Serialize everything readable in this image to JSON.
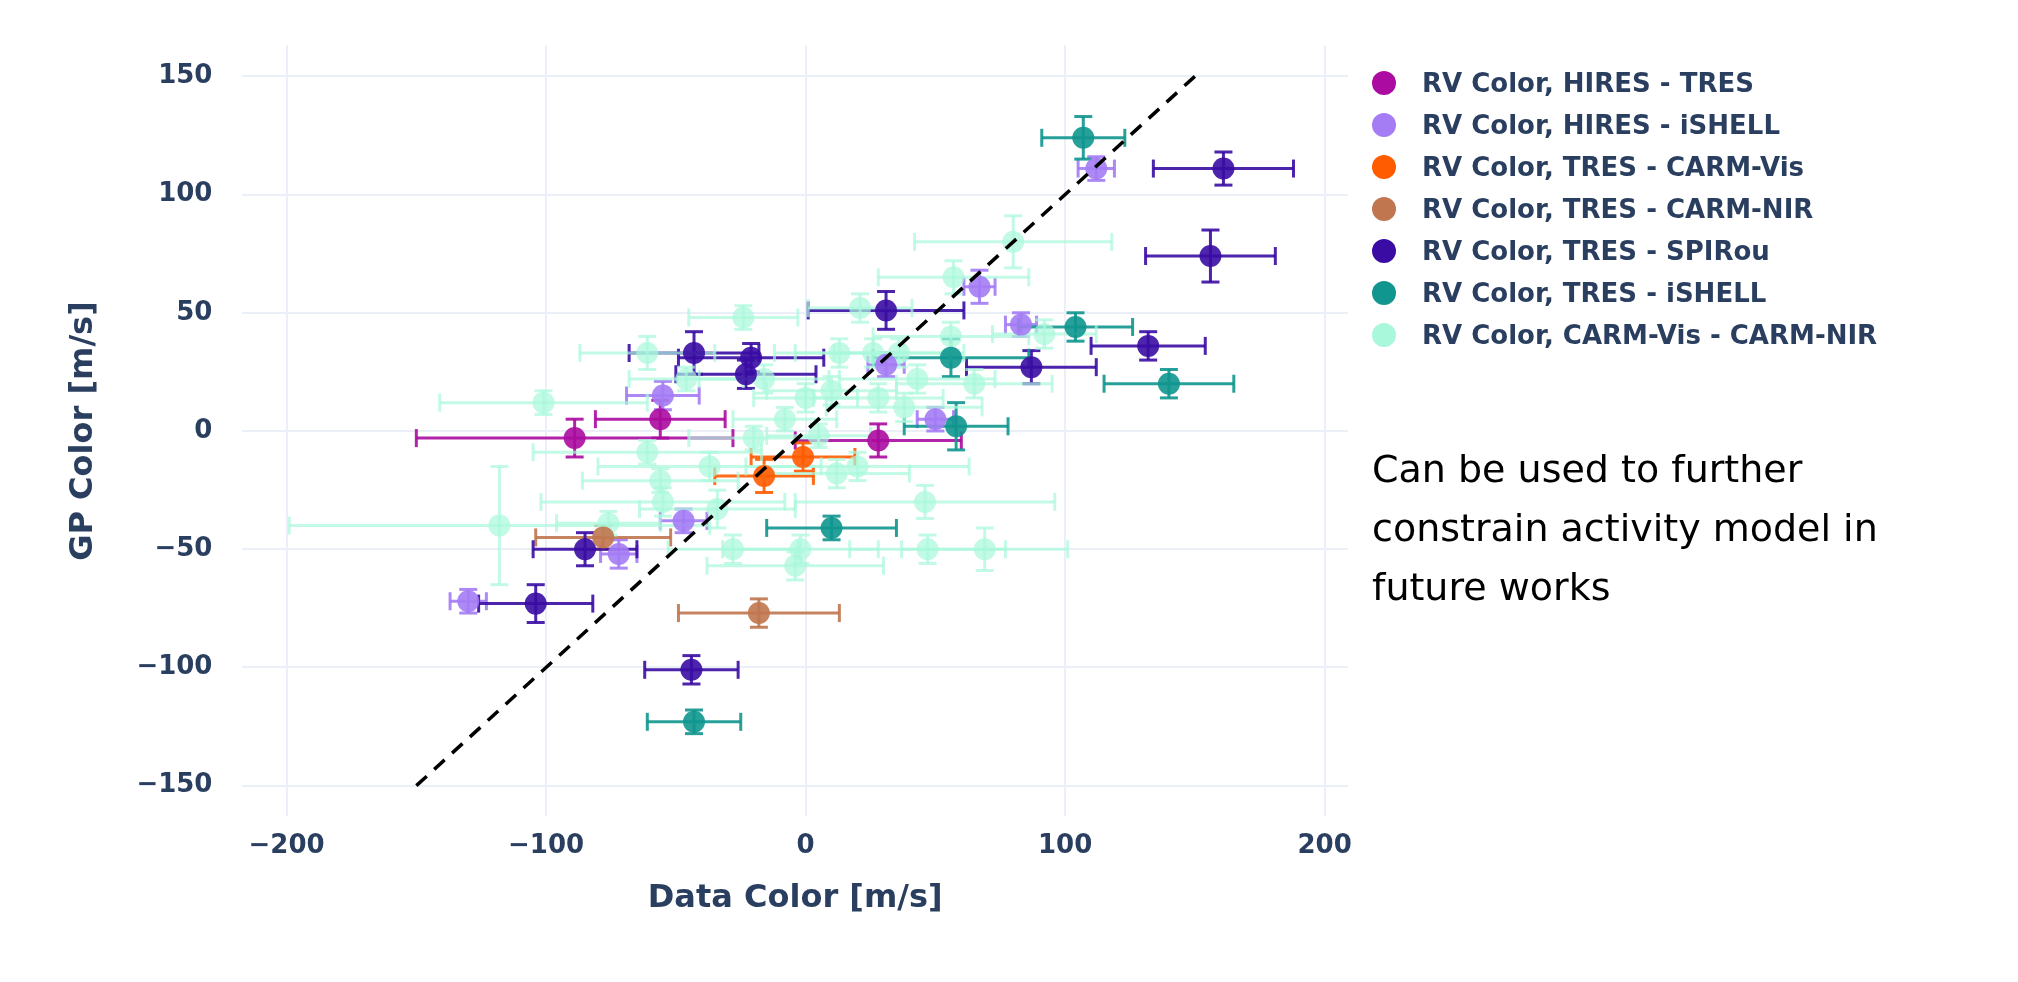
{
  "chart_data": {
    "type": "scatter",
    "xlabel": "Data Color [m/s]",
    "ylabel": "GP Color [m/s]",
    "xlim": [
      -217,
      209
    ],
    "xticks": [
      {
        "value": -200,
        "label": "−200"
      },
      {
        "value": -100,
        "label": "−100"
      },
      0,
      100,
      200
    ],
    "ylim": [
      -163,
      163
    ],
    "yticks": [
      {
        "value": -150,
        "label": "−150"
      },
      {
        "value": -100,
        "label": "−100"
      },
      {
        "value": -50,
        "label": "−50"
      },
      0,
      50,
      100,
      150
    ],
    "grid": true,
    "legend": "top right",
    "marker": "circle",
    "annotations": [
      "Can be used to further constrain activity model in future works"
    ],
    "series": [
      {
        "name": "RV Color, HIRES - TRES",
        "color": "#ab0ba0",
        "x": [
          -56,
          -89,
          28
        ],
        "values": [
          5,
          -3,
          -4
        ],
        "xerrors": [
          25,
          61,
          32
        ],
        "errors": [
          8,
          8,
          7
        ]
      },
      {
        "name": "RV Color, HIRES - iSHELL",
        "color": "#a47cf4",
        "x": [
          -55,
          -130,
          -47,
          -72,
          50,
          67,
          112,
          83,
          31
        ],
        "values": [
          15,
          -72,
          -38,
          -52,
          5,
          61,
          111,
          45,
          28
        ],
        "xerrors": [
          14,
          7,
          9,
          7,
          7,
          6,
          7,
          6,
          7
        ],
        "errors": [
          6,
          5,
          5,
          6,
          5,
          7,
          5,
          5,
          5
        ]
      },
      {
        "name": "RV Color, TRES - CARM-Vis",
        "color": "#ff5b00",
        "x": [
          -1,
          -16
        ],
        "values": [
          -11,
          -19
        ],
        "xerrors": [
          20,
          19
        ],
        "errors": [
          6,
          7
        ]
      },
      {
        "name": "RV Color, TRES - CARM-NIR",
        "color": "#c0764f",
        "x": [
          -78,
          -18
        ],
        "values": [
          -45,
          -77
        ],
        "xerrors": [
          26,
          31
        ],
        "errors": [
          5,
          6
        ]
      },
      {
        "name": "RV Color, TRES - SPIRou",
        "color": "#3a0ca3",
        "x": [
          -43,
          -21,
          -23,
          31,
          161,
          156,
          132,
          87,
          -85,
          -104,
          -44
        ],
        "values": [
          33,
          31,
          24,
          51,
          111,
          74,
          36,
          27,
          -50,
          -73,
          -101
        ],
        "xerrors": [
          25,
          28,
          27,
          30,
          27,
          25,
          22,
          25,
          20,
          22,
          18
        ],
        "errors": [
          9,
          6,
          6,
          8,
          7,
          11,
          6,
          7,
          7,
          8,
          6
        ]
      },
      {
        "name": "RV Color, TRES - iSHELL",
        "color": "#10968f",
        "x": [
          107,
          104,
          56,
          140,
          58,
          10,
          -43
        ],
        "values": [
          124,
          44,
          31,
          20,
          2,
          -41,
          -123
        ],
        "xerrors": [
          16,
          22,
          30,
          25,
          20,
          25,
          18
        ],
        "errors": [
          9,
          6,
          8,
          6,
          10,
          5,
          5
        ]
      },
      {
        "name": "RV Color, CARM-Vis - CARM-NIR",
        "color": "#a9f8db",
        "x": [
          -24,
          -61,
          -46,
          -101,
          -61,
          -37,
          -56,
          -55,
          -34,
          -118,
          -76,
          -28,
          -4,
          -2,
          12,
          20,
          46,
          47,
          69,
          80,
          57,
          21,
          92,
          -16,
          0,
          10,
          13,
          26,
          36,
          43,
          28,
          56,
          -8,
          5,
          -20,
          38,
          65
        ],
        "values": [
          48,
          33,
          22,
          12,
          -9,
          -15,
          -21,
          -30,
          -33,
          -40,
          -39,
          -50,
          -57,
          -50,
          -18,
          -15,
          -30,
          -50,
          -50,
          80,
          65,
          52,
          41,
          22,
          14,
          17,
          33,
          33,
          33,
          22,
          14,
          40,
          5,
          -2,
          -3,
          10,
          20
        ],
        "xerrors": [
          21,
          26,
          22,
          40,
          44,
          43,
          30,
          47,
          30,
          81,
          20,
          25,
          34,
          30,
          28,
          43,
          50,
          30,
          32,
          38,
          29,
          20,
          20,
          25,
          20,
          25,
          25,
          30,
          25,
          30,
          25,
          30,
          20,
          20,
          25,
          30,
          30
        ],
        "errors": [
          5,
          7,
          5,
          5,
          5,
          6,
          5,
          6,
          8,
          25,
          5,
          6,
          6,
          6,
          6,
          6,
          7,
          6,
          9,
          11,
          7,
          6,
          6,
          6,
          6,
          6,
          6,
          6,
          6,
          6,
          6,
          6,
          5,
          5,
          5,
          6,
          6
        ]
      },
      {
        "type": "line",
        "color": "#000000",
        "line_style": "dashed",
        "marker": "none",
        "x": [
          -150,
          150
        ],
        "values": [
          -150,
          150
        ]
      }
    ]
  }
}
